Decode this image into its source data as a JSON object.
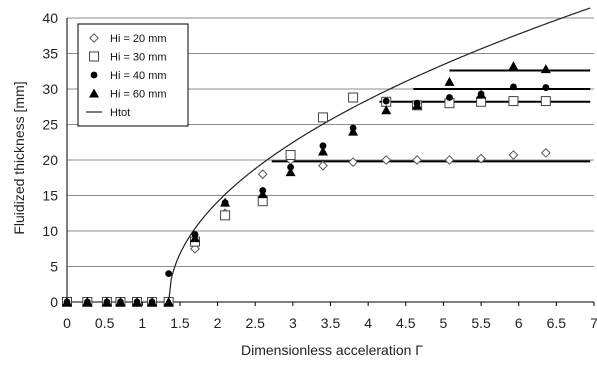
{
  "chart_data": {
    "type": "scatter",
    "xlabel": "Dimensionless acceleration Γ",
    "ylabel": "Fluidized thickness [mm]",
    "xlim": [
      0,
      7
    ],
    "ylim": [
      0,
      40
    ],
    "xticks": [
      "0",
      "0.5",
      "1",
      "1.5",
      "2",
      "2.5",
      "3",
      "3.5",
      "4",
      "4.5",
      "5",
      "5.5",
      "6",
      "6.5",
      "7"
    ],
    "yticks": [
      "0",
      "5",
      "10",
      "15",
      "20",
      "25",
      "30",
      "35",
      "40"
    ],
    "grid": "horizontal",
    "legend_position": "top-left",
    "series": [
      {
        "name": "Hi = 20 mm",
        "marker": "diamond-open",
        "points": [
          [
            0,
            0
          ],
          [
            0.27,
            0
          ],
          [
            0.53,
            0
          ],
          [
            0.71,
            0
          ],
          [
            0.93,
            0
          ],
          [
            1.13,
            0
          ],
          [
            1.35,
            0
          ],
          [
            1.7,
            7.5
          ],
          [
            2.1,
            12.5
          ],
          [
            2.6,
            18
          ],
          [
            2.97,
            20
          ],
          [
            3.4,
            19.2
          ],
          [
            3.8,
            19.7
          ],
          [
            4.24,
            20
          ],
          [
            4.65,
            20
          ],
          [
            5.08,
            20
          ],
          [
            5.5,
            20.2
          ],
          [
            5.93,
            20.7
          ],
          [
            6.36,
            21
          ]
        ]
      },
      {
        "name": "Hi = 30 mm",
        "marker": "square-open",
        "points": [
          [
            0,
            0
          ],
          [
            0.27,
            0
          ],
          [
            0.53,
            0
          ],
          [
            0.71,
            0
          ],
          [
            0.93,
            0
          ],
          [
            1.13,
            0
          ],
          [
            1.35,
            0
          ],
          [
            1.7,
            8.5
          ],
          [
            2.1,
            12.2
          ],
          [
            2.6,
            14.2
          ],
          [
            2.97,
            20.7
          ],
          [
            3.4,
            26
          ],
          [
            3.8,
            28.8
          ],
          [
            4.24,
            28.2
          ],
          [
            4.65,
            27.7
          ],
          [
            5.08,
            28
          ],
          [
            5.5,
            28.2
          ],
          [
            5.93,
            28.3
          ],
          [
            6.36,
            28.3
          ]
        ]
      },
      {
        "name": "Hi = 40 mm",
        "marker": "circle-filled",
        "points": [
          [
            0,
            0
          ],
          [
            0.27,
            0
          ],
          [
            0.53,
            0
          ],
          [
            0.71,
            0
          ],
          [
            0.93,
            0
          ],
          [
            1.13,
            0
          ],
          [
            1.35,
            4
          ],
          [
            1.7,
            9.5
          ],
          [
            2.1,
            14
          ],
          [
            2.6,
            15.7
          ],
          [
            2.97,
            19
          ],
          [
            3.4,
            22
          ],
          [
            3.8,
            24.5
          ],
          [
            4.24,
            28.3
          ],
          [
            4.65,
            28
          ],
          [
            5.08,
            28.8
          ],
          [
            5.5,
            29.3
          ],
          [
            5.93,
            30.3
          ],
          [
            6.36,
            30.2
          ]
        ]
      },
      {
        "name": "Hi = 60 mm",
        "marker": "triangle-filled",
        "points": [
          [
            0,
            0
          ],
          [
            0.27,
            0
          ],
          [
            0.53,
            0
          ],
          [
            0.71,
            0
          ],
          [
            0.93,
            0
          ],
          [
            1.13,
            0
          ],
          [
            1.35,
            0
          ],
          [
            1.7,
            9
          ],
          [
            2.1,
            14
          ],
          [
            2.6,
            15.2
          ],
          [
            2.97,
            18.3
          ],
          [
            3.4,
            21.2
          ],
          [
            3.8,
            24
          ],
          [
            4.24,
            27
          ],
          [
            4.65,
            27.7
          ],
          [
            5.08,
            31
          ],
          [
            5.5,
            29.2
          ],
          [
            5.93,
            33.2
          ],
          [
            6.36,
            32.8
          ]
        ]
      },
      {
        "name": "Htot",
        "marker": "line",
        "curve": {
          "x0": 1.35,
          "coef": 17.5,
          "x_end": 6.95
        }
      }
    ],
    "plateau_lines": [
      {
        "y": 19.8,
        "x_start": 2.72,
        "x_end": 6.95
      },
      {
        "y": 28.2,
        "x_start": 4.15,
        "x_end": 6.95
      },
      {
        "y": 30.0,
        "x_start": 4.6,
        "x_end": 6.95
      },
      {
        "y": 32.6,
        "x_start": 5.08,
        "x_end": 6.95
      }
    ],
    "colors": {
      "marker": "#000000",
      "grid": "#8c8c8c",
      "axis": "#000000"
    }
  }
}
